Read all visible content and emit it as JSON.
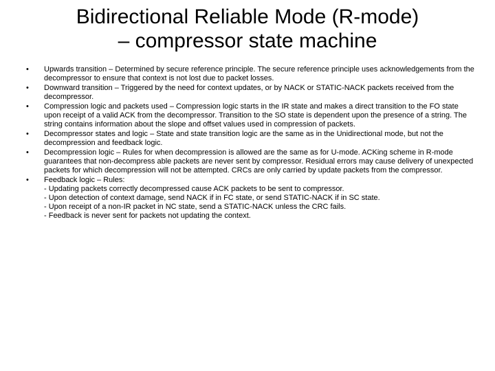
{
  "colors": {
    "background": "#ffffff",
    "text": "#000000"
  },
  "typography": {
    "title_fontsize": 30,
    "body_fontsize": 11,
    "font_family": "Arial"
  },
  "title": "Bidirectional Reliable Mode (R-mode)\n– compressor state machine",
  "bullets": [
    {
      "text": "Upwards transition – Determined by secure reference principle. The secure reference principle uses acknowledgements from the decompressor to ensure that context is not lost due to packet losses."
    },
    {
      "text": "Downward transition – Triggered by the need for context updates, or by NACK or STATIC-NACK packets received from the decompressor."
    },
    {
      "text": "Compression logic and packets used – Compression logic starts in the IR state and makes a direct transition to the FO state upon receipt of a valid ACK from the decompressor. Transition to the SO state is dependent upon the presence of a string. The string contains information about the slope and offset values used in compression of packets."
    },
    {
      "text": "Decompressor states and logic – State and state transition logic are the same as in the Unidirectional mode, but not the decompression and feedback logic."
    },
    {
      "text": "Decompression logic – Rules for when decompression is allowed are the same as for U-mode. ACKing scheme in R-mode guarantees that non-decompress able packets are never sent by compressor. Residual errors may cause delivery of unexpected packets for which decompression will not be attempted. CRCs are only carried by update packets from the compressor."
    },
    {
      "text": "Feedback logic – Rules:",
      "sublines": [
        "- Updating packets correctly decompressed cause ACK packets to be sent to compressor.",
        "- Upon detection of context damage, send NACK if in FC state, or send STATIC-NACK if in SC state.",
        "- Upon receipt of a non-IR packet in NC state, send a STATIC-NACK unless the CRC fails.",
        "- Feedback is never sent for packets not updating the context."
      ]
    }
  ]
}
